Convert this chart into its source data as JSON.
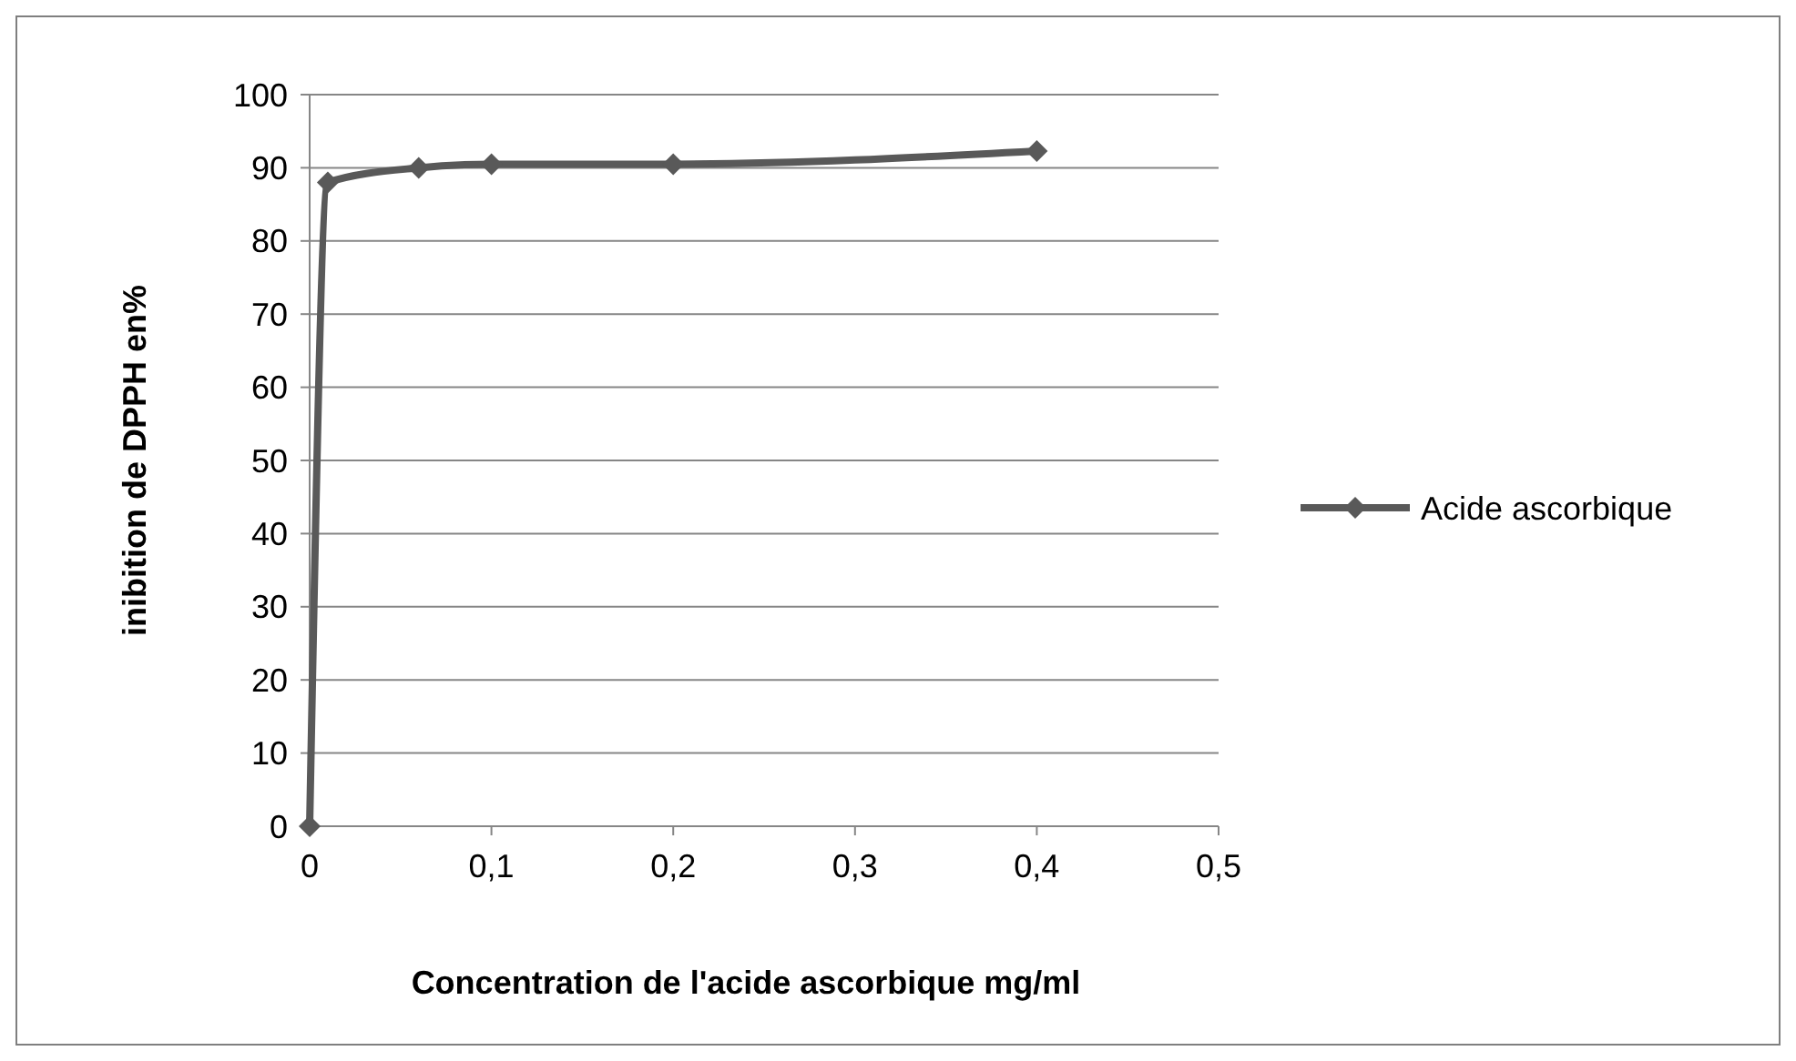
{
  "chart_data": {
    "type": "line",
    "xlabel": "Concentration de l'acide ascorbique mg/ml",
    "ylabel": "inibition de DPPH en%",
    "x": [
      0,
      0.01,
      0.06,
      0.1,
      0.2,
      0.4
    ],
    "series": [
      {
        "name": "Acide ascorbique",
        "color": "#595959",
        "values": [
          0,
          88,
          90,
          90.5,
          90.5,
          92.3
        ]
      }
    ],
    "xlim": [
      0,
      0.5
    ],
    "xticks": [
      0,
      {
        "value": 0.1,
        "label": "0,1"
      },
      {
        "value": 0.2,
        "label": "0,2"
      },
      {
        "value": 0.3,
        "label": "0,3"
      },
      {
        "value": 0.4,
        "label": "0,4"
      },
      {
        "value": 0.5,
        "label": "0,5"
      }
    ],
    "ylim": [
      0,
      100
    ],
    "yticks": [
      0,
      10,
      20,
      30,
      40,
      50,
      60,
      70,
      80,
      90,
      100
    ],
    "grid": "y",
    "legend": "right",
    "marker": "diamond",
    "line_style": "solid"
  }
}
